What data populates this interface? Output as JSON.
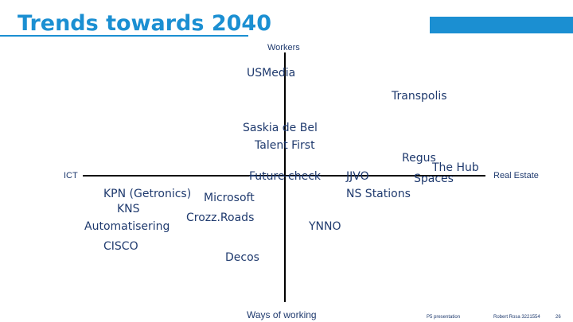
{
  "title": "Trends towards 2040",
  "axes": {
    "top": "Workers",
    "bottom": "Ways  of working",
    "left": "ICT",
    "right": "Real Estate"
  },
  "items": {
    "usmedia": "USMedia",
    "transpolis": "Transpolis",
    "saskia": "Saskia de Bel",
    "talent_first": "Talent First",
    "future_check": "Future check",
    "regus": "Regus",
    "the_hub": "The Hub",
    "jjvo": "JJVO",
    "spaces": "Spaces",
    "ns_stations": "NS Stations",
    "kpn": "KPN (Getronics)",
    "microsoft": "Microsoft",
    "kns": "KNS",
    "crozzroads": "Crozz.Roads",
    "automatisering": "Automatisering",
    "ynno": "YNNO",
    "cisco": "CISCO",
    "decos": "Decos"
  },
  "footer": {
    "presentation": "P5 presentation",
    "author": "Robert Rosa 3221554",
    "page": "26"
  }
}
